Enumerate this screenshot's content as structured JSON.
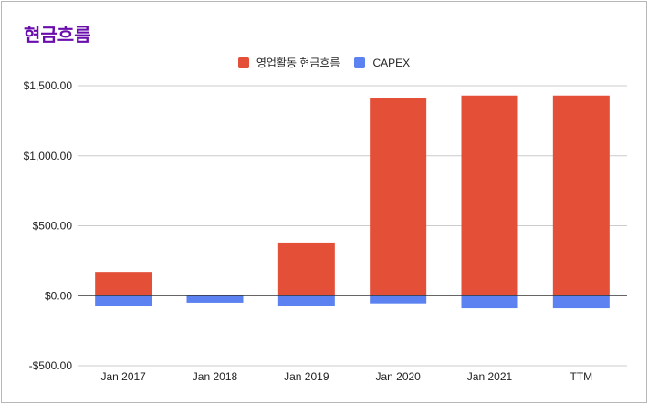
{
  "title": "현금흐름",
  "colors": {
    "operating": "#e34f37",
    "capex": "#5b82f0",
    "gridline": "#cccccc",
    "zero_line": "#333333"
  },
  "chart_data": {
    "type": "bar",
    "stacked": true,
    "title": "현금흐름",
    "categories": [
      "Jan 2017",
      "Jan 2018",
      "Jan 2019",
      "Jan 2020",
      "Jan 2021",
      "TTM"
    ],
    "series": [
      {
        "name": "영업활동 현금흐름",
        "values": [
          170,
          0,
          380,
          1410,
          1430,
          1430
        ]
      },
      {
        "name": "CAPEX",
        "values": [
          -75,
          -50,
          -70,
          -55,
          -90,
          -90
        ]
      }
    ],
    "ylim": [
      -500,
      1500
    ],
    "yticks": [
      -500,
      0,
      500,
      1000,
      1500
    ],
    "ytick_labels": [
      "-$500.00",
      "$0.00",
      "$500.00",
      "$1,000.00",
      "$1,500.00"
    ],
    "grid": true,
    "legend_position": "top"
  }
}
